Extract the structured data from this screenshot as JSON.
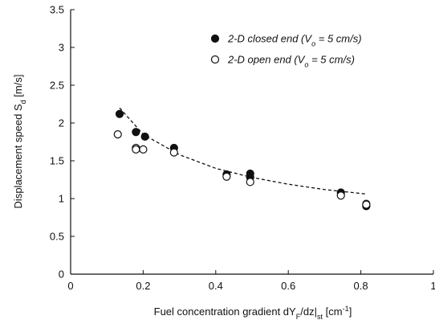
{
  "chart_data": {
    "type": "scatter",
    "xlabel": [
      {
        "text": "Fuel concentration gradient  dY"
      },
      {
        "text": "F",
        "shift": "sub"
      },
      {
        "text": "/dz|"
      },
      {
        "text": "st",
        "shift": "sub"
      },
      {
        "text": "  [cm"
      },
      {
        "text": "-1",
        "shift": "super"
      },
      {
        "text": "]"
      }
    ],
    "ylabel": [
      {
        "text": "Displacement speed  S"
      },
      {
        "text": "d",
        "shift": "sub"
      },
      {
        "text": "  [m/s]"
      }
    ],
    "xlim": [
      0,
      1
    ],
    "xticks": [
      0,
      0.2,
      0.4,
      0.6,
      0.8,
      1
    ],
    "ylim": [
      0,
      3.5
    ],
    "yticks": [
      0,
      0.5,
      1,
      1.5,
      2,
      2.5,
      3,
      3.5
    ],
    "series": [
      {
        "name": [
          {
            "text": "2-D closed end (V"
          },
          {
            "text": "o",
            "shift": "sub"
          },
          {
            "text": " = 5 cm/s)"
          }
        ],
        "color": "#111111",
        "fill": true,
        "x": [
          0.135,
          0.18,
          0.205,
          0.285,
          0.43,
          0.495,
          0.495,
          0.745,
          0.815,
          0.815
        ],
        "values": [
          2.12,
          1.88,
          1.82,
          1.67,
          1.32,
          1.33,
          1.28,
          1.08,
          0.93,
          0.9
        ]
      },
      {
        "name": [
          {
            "text": "2-D open end (V"
          },
          {
            "text": "o",
            "shift": "sub"
          },
          {
            "text": " = 5 cm/s)"
          }
        ],
        "color": "#111111",
        "fill": false,
        "x": [
          0.13,
          0.18,
          0.18,
          0.2,
          0.285,
          0.43,
          0.495,
          0.745,
          0.815
        ],
        "values": [
          1.85,
          1.67,
          1.65,
          1.65,
          1.61,
          1.29,
          1.22,
          1.04,
          0.92
        ]
      }
    ],
    "fit": {
      "color": "#111111",
      "x": [
        0.135,
        0.2,
        0.3,
        0.4,
        0.5,
        0.6,
        0.7,
        0.815
      ],
      "values": [
        2.2,
        1.85,
        1.58,
        1.4,
        1.28,
        1.19,
        1.12,
        1.06
      ]
    }
  }
}
